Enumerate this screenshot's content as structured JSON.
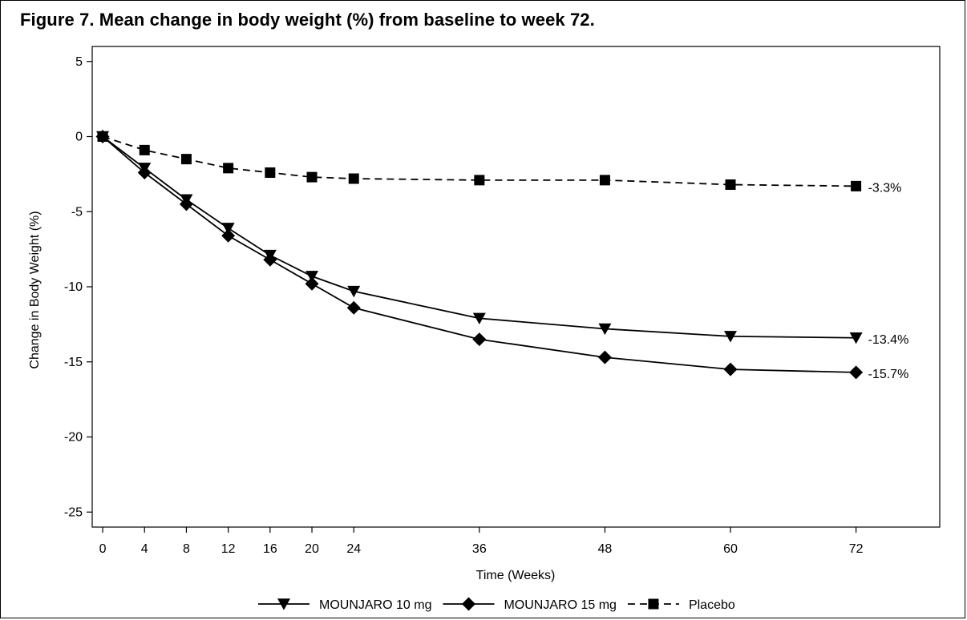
{
  "figure_title": "Figure 7. Mean change in body weight (%) from baseline to week 72.",
  "colors": {
    "lines": "#000000",
    "background": "#ffffff"
  },
  "chart_data": {
    "type": "line",
    "title": "Figure 7. Mean change in body weight (%) from baseline to week 72.",
    "xlabel": "Time (Weeks)",
    "ylabel": "Change in Body Weight (%)",
    "x": [
      0,
      4,
      8,
      12,
      16,
      20,
      24,
      36,
      48,
      60,
      72
    ],
    "x_ticks": [
      0,
      4,
      8,
      12,
      16,
      20,
      24,
      36,
      48,
      60,
      72
    ],
    "y_ticks": [
      5,
      0,
      -5,
      -10,
      -15,
      -20,
      -25
    ],
    "xlim": [
      -1,
      80
    ],
    "ylim": [
      -26,
      6
    ],
    "grid": false,
    "legend_position": "bottom",
    "series": [
      {
        "name": "MOUNJARO 10 mg",
        "marker": "triangle-down",
        "line_style": "solid",
        "values": [
          0,
          -2.1,
          -4.2,
          -6.1,
          -7.9,
          -9.3,
          -10.3,
          -12.1,
          -12.8,
          -13.3,
          -13.4
        ],
        "end_label": "-13.4%"
      },
      {
        "name": "MOUNJARO 15 mg",
        "marker": "diamond",
        "line_style": "solid",
        "values": [
          0,
          -2.4,
          -4.5,
          -6.6,
          -8.2,
          -9.8,
          -11.4,
          -13.5,
          -14.7,
          -15.5,
          -15.7
        ],
        "end_label": "-15.7%"
      },
      {
        "name": "Placebo",
        "marker": "square",
        "line_style": "dashed",
        "values": [
          0,
          -0.9,
          -1.5,
          -2.1,
          -2.4,
          -2.7,
          -2.8,
          -2.9,
          -2.9,
          -3.2,
          -3.3
        ],
        "end_label": "-3.3%"
      }
    ]
  }
}
